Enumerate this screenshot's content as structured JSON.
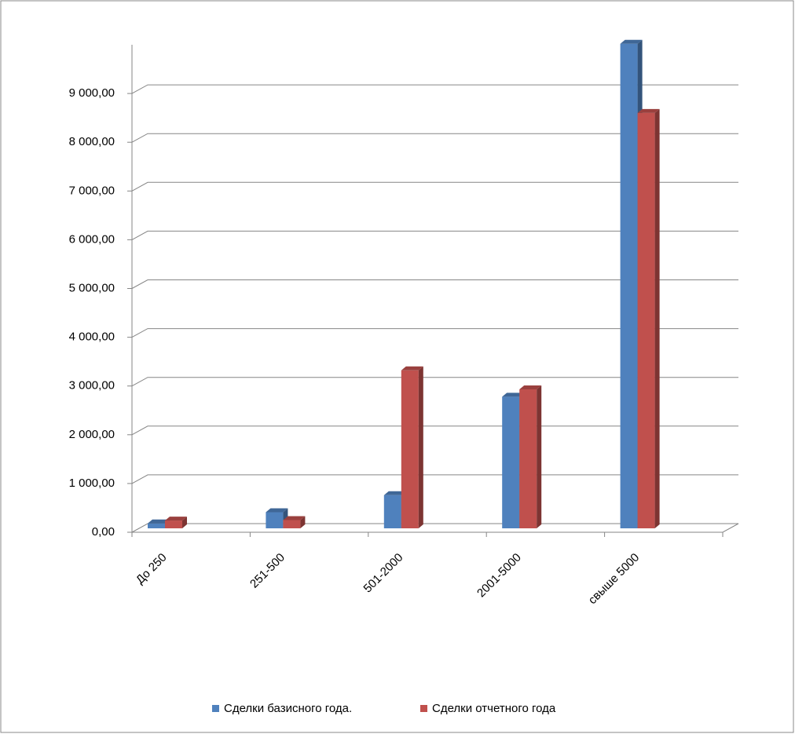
{
  "chart_data": {
    "type": "bar3d",
    "categories": [
      "До 250",
      "251-500",
      "501-2000",
      "2001-5000",
      "свыше 5000"
    ],
    "series": [
      {
        "name": "Сделки базисного года.",
        "color": "#4f81bd",
        "values": [
          100,
          330,
          680,
          2700,
          9940
        ]
      },
      {
        "name": "Сделки отчетного года",
        "color": "#c0504d",
        "values": [
          160,
          170,
          3240,
          2850,
          8520
        ]
      }
    ],
    "ylim": [
      0,
      10000
    ],
    "yticks": [
      {
        "value": 0,
        "label": "0,00"
      },
      {
        "value": 1000,
        "label": "1 000,00"
      },
      {
        "value": 2000,
        "label": "2 000,00"
      },
      {
        "value": 3000,
        "label": "3 000,00"
      },
      {
        "value": 4000,
        "label": "4 000,00"
      },
      {
        "value": 5000,
        "label": "5 000,00"
      },
      {
        "value": 6000,
        "label": "6 000,00"
      },
      {
        "value": 7000,
        "label": "7 000,00"
      },
      {
        "value": 8000,
        "label": "8 000,00"
      },
      {
        "value": 9000,
        "label": "9 000,00"
      }
    ],
    "grid": true,
    "legend": "bottom"
  }
}
